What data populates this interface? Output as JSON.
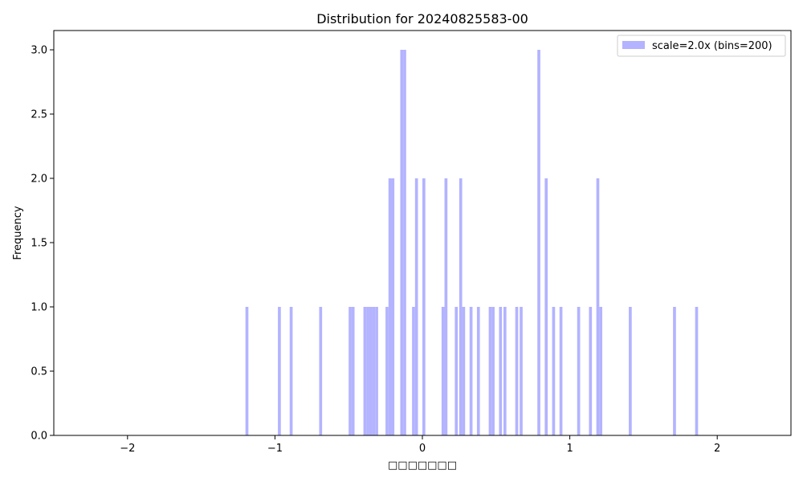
{
  "chart_data": {
    "type": "bar",
    "title": "Distribution for 20240825583-00",
    "xlabel": "□□□□□□□",
    "ylabel": "Frequency",
    "xlim": [
      -2.5,
      2.5
    ],
    "ylim": [
      0,
      3.15
    ],
    "bar_width": 0.02,
    "bar_color": "#b3b3ff",
    "xticks": [
      -2,
      -1,
      0,
      1,
      2
    ],
    "xtick_labels": [
      "−2",
      "−1",
      "0",
      "1",
      "2"
    ],
    "yticks": [
      0,
      0.5,
      1,
      1.5,
      2,
      2.5,
      3
    ],
    "ytick_labels": [
      "0.0",
      "0.5",
      "1.0",
      "1.5",
      "2.0",
      "2.5",
      "3.0"
    ],
    "legend": {
      "label": "scale=2.0x (bins=200)",
      "position": "upper right"
    },
    "series": [
      {
        "name": "scale=2.0x (bins=200)",
        "x": [
          -1.19,
          -0.97,
          -0.89,
          -0.69,
          -0.49,
          -0.47,
          -0.39,
          -0.37,
          -0.35,
          -0.33,
          -0.31,
          -0.24,
          -0.22,
          -0.2,
          -0.14,
          -0.12,
          -0.06,
          -0.04,
          0.01,
          0.14,
          0.16,
          0.23,
          0.26,
          0.28,
          0.33,
          0.38,
          0.46,
          0.48,
          0.53,
          0.56,
          0.64,
          0.67,
          0.79,
          0.84,
          0.89,
          0.94,
          1.06,
          1.14,
          1.19,
          1.21,
          1.41,
          1.71,
          1.86
        ],
        "values": [
          1,
          1,
          1,
          1,
          1,
          1,
          1,
          1,
          1,
          1,
          1,
          1,
          2,
          2,
          3,
          3,
          1,
          2,
          2,
          1,
          2,
          1,
          2,
          1,
          1,
          1,
          1,
          1,
          1,
          1,
          1,
          1,
          3,
          2,
          1,
          1,
          1,
          1,
          2,
          1,
          1,
          1,
          1
        ]
      }
    ]
  }
}
